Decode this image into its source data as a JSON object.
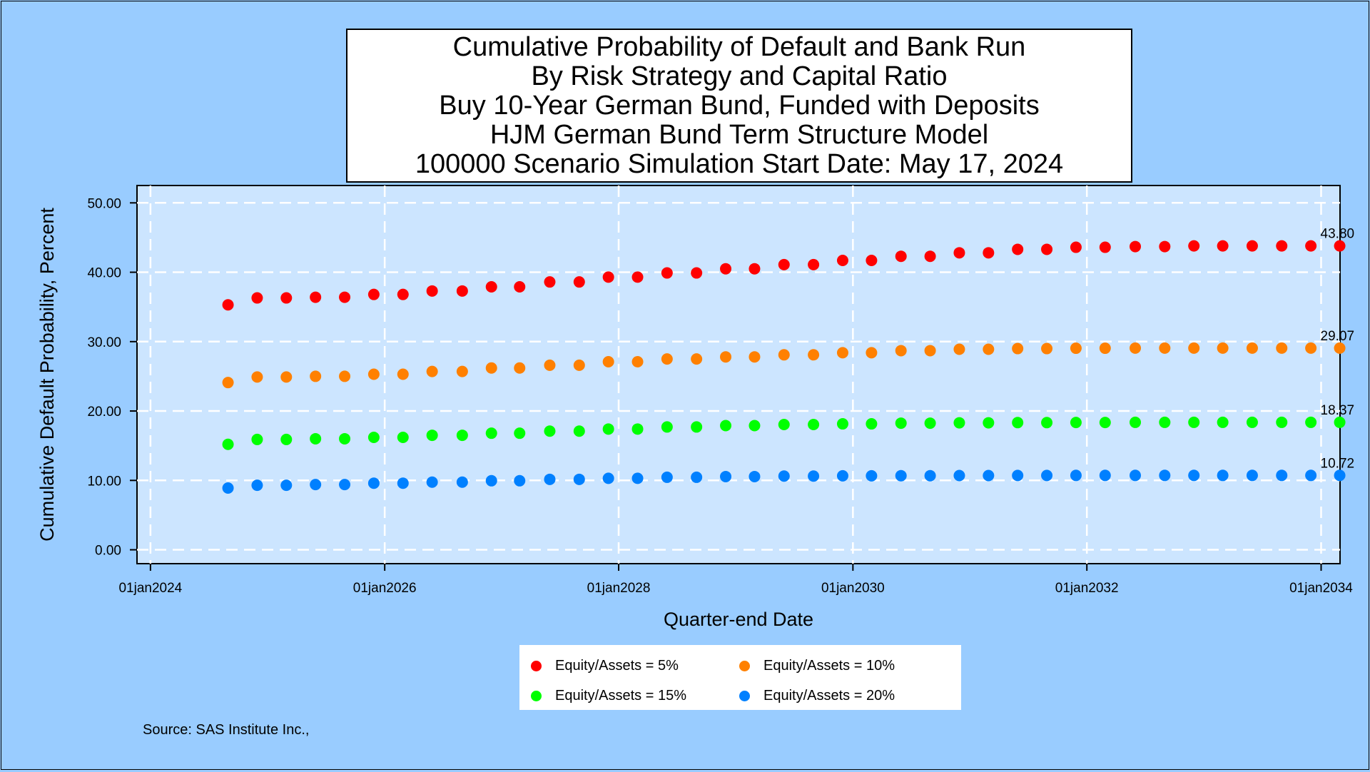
{
  "title_lines": [
    "Cumulative Probability of Default and Bank Run",
    "By Risk Strategy and Capital Ratio",
    "Buy 10-Year German Bund, Funded with Deposits",
    "HJM German Bund Term Structure Model",
    "100000 Scenario Simulation Start Date: May 17, 2024"
  ],
  "source": "Source: SAS Institute Inc.,",
  "colors": {
    "background": "#99CCFF",
    "plot_background": "#CCE5FF",
    "grid": "#FFFFFF"
  },
  "chart_data": {
    "type": "scatter",
    "xlabel": "Quarter-end Date",
    "ylabel": "Cumulative Default Probability, Percent",
    "xlim": [
      "2023-11-20",
      "2034-03-01"
    ],
    "ylim": [
      -2,
      52.5
    ],
    "x_ticks": [
      "01jan2024",
      "01jan2026",
      "01jan2028",
      "01jan2030",
      "01jan2032",
      "01jan2034"
    ],
    "x_tick_dates": [
      "2024-01-01",
      "2026-01-01",
      "2028-01-01",
      "2030-01-01",
      "2032-01-01",
      "2034-01-01"
    ],
    "y_ticks": [
      "0.00",
      "10.00",
      "20.00",
      "30.00",
      "40.00",
      "50.00"
    ],
    "y_tick_values": [
      0,
      10,
      20,
      30,
      40,
      50
    ],
    "grid": true,
    "legend_position": "bottom",
    "x": [
      "2024-08-30",
      "2024-11-29",
      "2025-02-28",
      "2025-05-30",
      "2025-08-29",
      "2025-11-28",
      "2026-02-27",
      "2026-05-29",
      "2026-08-31",
      "2026-11-30",
      "2027-02-26",
      "2027-05-31",
      "2027-08-31",
      "2027-11-30",
      "2028-02-29",
      "2028-05-31",
      "2028-08-31",
      "2028-11-30",
      "2029-02-28",
      "2029-05-31",
      "2029-08-31",
      "2029-11-30",
      "2030-02-28",
      "2030-05-31",
      "2030-08-30",
      "2030-11-29",
      "2031-02-28",
      "2031-05-30",
      "2031-08-29",
      "2031-11-28",
      "2032-02-27",
      "2032-05-31",
      "2032-08-31",
      "2032-11-30",
      "2033-02-28",
      "2033-05-31",
      "2033-08-31",
      "2033-11-30",
      "2034-02-28"
    ],
    "series": [
      {
        "name": "Equity/Assets = 5%",
        "color": "#FF0000",
        "end_label": "43.80",
        "values": [
          35.3,
          36.3,
          36.3,
          36.4,
          36.4,
          36.8,
          36.8,
          37.3,
          37.3,
          37.9,
          37.9,
          38.6,
          38.6,
          39.3,
          39.3,
          39.9,
          39.9,
          40.5,
          40.5,
          41.1,
          41.1,
          41.7,
          41.7,
          42.3,
          42.3,
          42.8,
          42.8,
          43.3,
          43.3,
          43.6,
          43.6,
          43.7,
          43.7,
          43.8,
          43.8,
          43.8,
          43.8,
          43.8,
          43.8
        ]
      },
      {
        "name": "Equity/Assets = 10%",
        "color": "#FF8000",
        "end_label": "29.07",
        "values": [
          24.1,
          24.9,
          24.9,
          25.0,
          25.0,
          25.3,
          25.3,
          25.7,
          25.7,
          26.2,
          26.2,
          26.6,
          26.6,
          27.1,
          27.1,
          27.5,
          27.5,
          27.8,
          27.8,
          28.1,
          28.1,
          28.4,
          28.4,
          28.7,
          28.7,
          28.9,
          28.9,
          29.0,
          29.0,
          29.05,
          29.05,
          29.07,
          29.07,
          29.07,
          29.07,
          29.07,
          29.07,
          29.07,
          29.07
        ]
      },
      {
        "name": "Equity/Assets = 15%",
        "color": "#00FF00",
        "end_label": "18.37",
        "values": [
          15.2,
          15.9,
          15.9,
          16.0,
          16.0,
          16.2,
          16.2,
          16.5,
          16.5,
          16.8,
          16.8,
          17.1,
          17.1,
          17.4,
          17.4,
          17.7,
          17.7,
          17.9,
          17.9,
          18.05,
          18.05,
          18.15,
          18.15,
          18.25,
          18.25,
          18.3,
          18.3,
          18.33,
          18.33,
          18.35,
          18.35,
          18.37,
          18.37,
          18.37,
          18.37,
          18.37,
          18.37,
          18.37,
          18.37
        ]
      },
      {
        "name": "Equity/Assets = 20%",
        "color": "#0080FF",
        "end_label": "10.72",
        "values": [
          8.9,
          9.3,
          9.3,
          9.4,
          9.4,
          9.6,
          9.6,
          9.75,
          9.75,
          9.95,
          9.95,
          10.15,
          10.15,
          10.3,
          10.3,
          10.45,
          10.45,
          10.55,
          10.55,
          10.62,
          10.62,
          10.66,
          10.66,
          10.68,
          10.68,
          10.7,
          10.7,
          10.71,
          10.71,
          10.72,
          10.72,
          10.72,
          10.72,
          10.72,
          10.72,
          10.72,
          10.72,
          10.72,
          10.72
        ]
      }
    ]
  }
}
